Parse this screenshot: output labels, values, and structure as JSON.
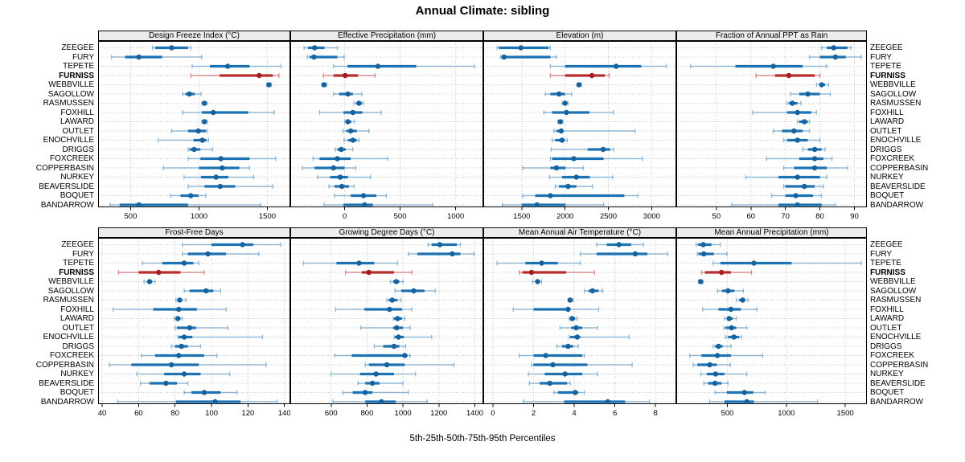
{
  "chart_data": {
    "type": "interval",
    "title": "Annual Climate: sibling",
    "xlabel": "5th-25th-50th-75th-95th Percentiles",
    "percentiles": [
      5,
      25,
      50,
      75,
      95
    ],
    "grid": true,
    "legend_position": "none",
    "highlight_site": "FURNISS",
    "colors": {
      "series": "#1d72b2",
      "series_light": "rgba(29,114,178,0.45)",
      "median_dot": "#15629e",
      "highlight": "#bb2d2d",
      "highlight_light": "rgba(187,45,45,0.5)",
      "highlight_dot": "#a31f1f",
      "strip_bg": "#ececec",
      "gridline": "#c8c8c8"
    },
    "sites": [
      "ZEEGEE",
      "FURY",
      "TEPETE",
      "FURNISS",
      "WEBBVILLE",
      "SAGOLLOW",
      "RASMUSSEN",
      "FOXHILL",
      "LAWARD",
      "OUTLET",
      "ENOCHVILLE",
      "DRIGGS",
      "FOXCREEK",
      "COPPERBASIN",
      "NURKEY",
      "BEAVERSLIDE",
      "BOQUET",
      "BANDARROW"
    ],
    "panels": [
      {
        "label": "Design Freeze Index (°C)",
        "row": 0,
        "col": 0,
        "xlim": [
          265,
          1665
        ],
        "ticks": [
          500,
          1000,
          1500
        ],
        "rows": [
          [
            660,
            680,
            800,
            920,
            940
          ],
          [
            360,
            460,
            560,
            730,
            1020
          ],
          [
            950,
            1080,
            1210,
            1370,
            1600
          ],
          [
            940,
            1150,
            1440,
            1540,
            1585
          ],
          [
            1495,
            1505,
            1512,
            1520,
            1530
          ],
          [
            880,
            900,
            930,
            970,
            1015
          ],
          [
            1020,
            1030,
            1040,
            1050,
            1060
          ],
          [
            880,
            1020,
            1105,
            1360,
            1550
          ],
          [
            1020,
            1030,
            1040,
            1050,
            1062
          ],
          [
            800,
            920,
            995,
            1050,
            1060
          ],
          [
            700,
            960,
            1025,
            1055,
            1070
          ],
          [
            920,
            930,
            965,
            1010,
            1100
          ],
          [
            920,
            1010,
            1160,
            1370,
            1560
          ],
          [
            740,
            1000,
            1170,
            1295,
            1370
          ],
          [
            890,
            1015,
            1125,
            1215,
            1400
          ],
          [
            920,
            1040,
            1155,
            1265,
            1540
          ],
          [
            790,
            865,
            940,
            995,
            1050
          ],
          [
            350,
            420,
            560,
            920,
            1450
          ]
        ]
      },
      {
        "label": "Effective Precipitation (mm)",
        "row": 0,
        "col": 1,
        "xlim": [
          -485,
          1245
        ],
        "ticks": [
          0,
          500,
          1000
        ],
        "rows": [
          [
            -365,
            -330,
            -270,
            -180,
            -65
          ],
          [
            -335,
            -315,
            -275,
            -65,
            -5
          ],
          [
            -100,
            25,
            300,
            645,
            1170
          ],
          [
            -190,
            -100,
            5,
            120,
            275
          ],
          [
            -205,
            -195,
            -185,
            -170,
            -160
          ],
          [
            -100,
            -50,
            30,
            75,
            155
          ],
          [
            85,
            105,
            130,
            155,
            170
          ],
          [
            -225,
            -10,
            75,
            160,
            330
          ],
          [
            0,
            10,
            30,
            60,
            90
          ],
          [
            -15,
            15,
            55,
            110,
            220
          ],
          [
            -5,
            30,
            75,
            110,
            130
          ],
          [
            -85,
            -65,
            -30,
            10,
            75
          ],
          [
            -285,
            -225,
            -65,
            55,
            390
          ],
          [
            -380,
            -270,
            -100,
            0,
            100
          ],
          [
            -245,
            -130,
            -40,
            30,
            235
          ],
          [
            -140,
            -90,
            -25,
            40,
            85
          ],
          [
            -90,
            55,
            170,
            285,
            375
          ],
          [
            -185,
            -10,
            180,
            255,
            790
          ]
        ]
      },
      {
        "label": "Elevation (m)",
        "row": 0,
        "col": 2,
        "xlim": [
          1060,
          3280
        ],
        "ticks": [
          1500,
          2000,
          2500,
          3000
        ],
        "rows": [
          [
            1215,
            1235,
            1490,
            1810,
            1830
          ],
          [
            1255,
            1265,
            1295,
            1830,
            1900
          ],
          [
            1830,
            2000,
            2590,
            2880,
            3170
          ],
          [
            1830,
            2000,
            2310,
            2460,
            2510
          ],
          [
            2140,
            2150,
            2160,
            2175,
            2190
          ],
          [
            1770,
            1830,
            1930,
            2000,
            2075
          ],
          [
            1965,
            1985,
            2000,
            2020,
            2035
          ],
          [
            1755,
            1850,
            2015,
            2280,
            2560
          ],
          [
            1915,
            1930,
            1945,
            1960,
            1975
          ],
          [
            1870,
            1900,
            1955,
            1970,
            2810
          ],
          [
            1850,
            1885,
            1965,
            1995,
            2025
          ],
          [
            1840,
            2260,
            2440,
            2520,
            2560
          ],
          [
            1830,
            1850,
            2100,
            2445,
            2895
          ],
          [
            1510,
            1830,
            1900,
            2005,
            2210
          ],
          [
            1820,
            1965,
            2130,
            2285,
            2550
          ],
          [
            1885,
            1930,
            2035,
            2130,
            2315
          ],
          [
            1510,
            1655,
            1830,
            2685,
            2840
          ],
          [
            1275,
            1500,
            1675,
            2005,
            2445
          ]
        ]
      },
      {
        "label": "Fraction of Annual PPT as Rain",
        "row": 0,
        "col": 3,
        "xlim": [
          38.5,
          93.5
        ],
        "ticks": [
          50,
          60,
          70,
          80,
          90
        ],
        "rows": [
          [
            80.5,
            82,
            84,
            88,
            89
          ],
          [
            77,
            80,
            84.5,
            87.5,
            92
          ],
          [
            42.5,
            55.5,
            66.5,
            75,
            82
          ],
          [
            61.5,
            67,
            71,
            78.5,
            80
          ],
          [
            79,
            80,
            80.5,
            81.5,
            82.5
          ],
          [
            71.5,
            74,
            76.5,
            80,
            83
          ],
          [
            70.5,
            71,
            72,
            73.5,
            74.5
          ],
          [
            60.5,
            70.5,
            73.5,
            77.5,
            79
          ],
          [
            73.5,
            74,
            75.5,
            76.5,
            77
          ],
          [
            66.5,
            69,
            72.5,
            75,
            77
          ],
          [
            69.5,
            70.5,
            73.5,
            76.5,
            80
          ],
          [
            75,
            76.5,
            78.5,
            80.5,
            81.5
          ],
          [
            64.5,
            74,
            78.5,
            81,
            83.5
          ],
          [
            69.5,
            72.5,
            78.5,
            82,
            88
          ],
          [
            58.5,
            68,
            73.5,
            80,
            82
          ],
          [
            69.5,
            70,
            75.5,
            78.5,
            81
          ],
          [
            66,
            70,
            73,
            78,
            80.5
          ],
          [
            54.5,
            68,
            73.5,
            80.5,
            84.5
          ]
        ]
      },
      {
        "label": "Frost-Free Days",
        "row": 1,
        "col": 0,
        "xlim": [
          38,
          143
        ],
        "ticks": [
          40,
          60,
          80,
          100,
          120,
          140
        ],
        "rows": [
          [
            84,
            100,
            117,
            123,
            138
          ],
          [
            84,
            87,
            98,
            108,
            126
          ],
          [
            62,
            73,
            85,
            90,
            93
          ],
          [
            49,
            60,
            71,
            83,
            96
          ],
          [
            63,
            65,
            66,
            67.5,
            69
          ],
          [
            85,
            88,
            97,
            101,
            105
          ],
          [
            80.5,
            81.5,
            82.5,
            84,
            86
          ],
          [
            46,
            68,
            82,
            92,
            108
          ],
          [
            79.5,
            80.5,
            81.5,
            83,
            84
          ],
          [
            80,
            81,
            88,
            91.5,
            109
          ],
          [
            81.5,
            82,
            85,
            89.5,
            128
          ],
          [
            78,
            80,
            83.5,
            87,
            94
          ],
          [
            61.5,
            69,
            82,
            96,
            103
          ],
          [
            44,
            56,
            78,
            93,
            130
          ],
          [
            59,
            74,
            85,
            94,
            110
          ],
          [
            61,
            66,
            75,
            81,
            87
          ],
          [
            85,
            89,
            96,
            105,
            114
          ],
          [
            48.5,
            80.5,
            102,
            116,
            136
          ]
        ]
      },
      {
        "label": "Growing Degree Days (°C)",
        "row": 1,
        "col": 1,
        "xlim": [
          375,
          1445
        ],
        "ticks": [
          600,
          800,
          1000,
          1200,
          1400
        ],
        "rows": [
          [
            1140,
            1160,
            1205,
            1300,
            1320
          ],
          [
            1030,
            1080,
            1275,
            1320,
            1395
          ],
          [
            445,
            630,
            755,
            840,
            970
          ],
          [
            680,
            770,
            810,
            950,
            1050
          ],
          [
            930,
            945,
            963,
            980,
            1000
          ],
          [
            955,
            990,
            1060,
            1120,
            1180
          ],
          [
            910,
            920,
            940,
            970,
            990
          ],
          [
            625,
            785,
            925,
            995,
            1050
          ],
          [
            945,
            950,
            970,
            995,
            1010
          ],
          [
            765,
            945,
            965,
            1000,
            1040
          ],
          [
            950,
            955,
            975,
            1005,
            1160
          ],
          [
            840,
            890,
            950,
            980,
            1015
          ],
          [
            620,
            715,
            1010,
            1025,
            1040
          ],
          [
            790,
            810,
            910,
            1010,
            1285
          ],
          [
            600,
            760,
            850,
            950,
            1070
          ],
          [
            750,
            790,
            830,
            870,
            1000
          ],
          [
            665,
            720,
            790,
            830,
            1030
          ],
          [
            610,
            790,
            880,
            960,
            1135
          ]
        ]
      },
      {
        "label": "Mean Annual Air Temperature (°C)",
        "row": 1,
        "col": 2,
        "xlim": [
          -0.45,
          9.0
        ],
        "ticks": [
          0,
          2,
          4,
          6,
          8
        ],
        "rows": [
          [
            5.1,
            5.6,
            6.2,
            6.8,
            7.4
          ],
          [
            4.3,
            5.1,
            7.0,
            7.6,
            8.6
          ],
          [
            0.2,
            1.6,
            2.4,
            3.2,
            4.3
          ],
          [
            1.3,
            1.45,
            1.9,
            3.6,
            5.0
          ],
          [
            1.95,
            2.1,
            2.2,
            2.3,
            2.4
          ],
          [
            4.5,
            4.7,
            4.9,
            5.2,
            5.4
          ],
          [
            3.7,
            3.75,
            3.8,
            3.9,
            3.95
          ],
          [
            1.0,
            2.0,
            3.7,
            3.8,
            5.2
          ],
          [
            3.75,
            3.8,
            3.9,
            4.05,
            4.15
          ],
          [
            3.3,
            3.85,
            4.1,
            4.4,
            5.15
          ],
          [
            3.75,
            3.8,
            4.15,
            4.3,
            6.7
          ],
          [
            3.15,
            3.4,
            3.7,
            3.95,
            4.2
          ],
          [
            1.3,
            2.0,
            2.6,
            4.4,
            4.5
          ],
          [
            1.9,
            2.0,
            2.95,
            4.65,
            6.85
          ],
          [
            1.75,
            2.55,
            3.55,
            4.4,
            5.15
          ],
          [
            1.8,
            2.3,
            2.8,
            3.65,
            3.8
          ],
          [
            3.0,
            3.2,
            4.05,
            4.2,
            4.5
          ],
          [
            1.5,
            3.5,
            5.65,
            6.5,
            7.7
          ]
        ]
      },
      {
        "label": "Mean Annual Precipitation (mm)",
        "row": 1,
        "col": 3,
        "xlim": [
          70,
          1680
        ],
        "ticks": [
          500,
          1000,
          1500
        ],
        "rows": [
          [
            235,
            250,
            295,
            365,
            440
          ],
          [
            245,
            255,
            300,
            385,
            495
          ],
          [
            380,
            440,
            725,
            1045,
            1635
          ],
          [
            280,
            310,
            450,
            530,
            705
          ],
          [
            255,
            265,
            273,
            285,
            295
          ],
          [
            415,
            455,
            505,
            560,
            635
          ],
          [
            575,
            600,
            630,
            650,
            675
          ],
          [
            290,
            425,
            530,
            615,
            750
          ],
          [
            475,
            495,
            515,
            545,
            575
          ],
          [
            470,
            485,
            535,
            575,
            665
          ],
          [
            485,
            505,
            555,
            600,
            620
          ],
          [
            380,
            395,
            425,
            460,
            530
          ],
          [
            180,
            280,
            415,
            530,
            800
          ],
          [
            210,
            245,
            350,
            410,
            525
          ],
          [
            275,
            325,
            400,
            475,
            665
          ],
          [
            300,
            335,
            395,
            450,
            505
          ],
          [
            395,
            495,
            645,
            720,
            820
          ],
          [
            350,
            475,
            665,
            725,
            1265
          ]
        ]
      }
    ]
  }
}
